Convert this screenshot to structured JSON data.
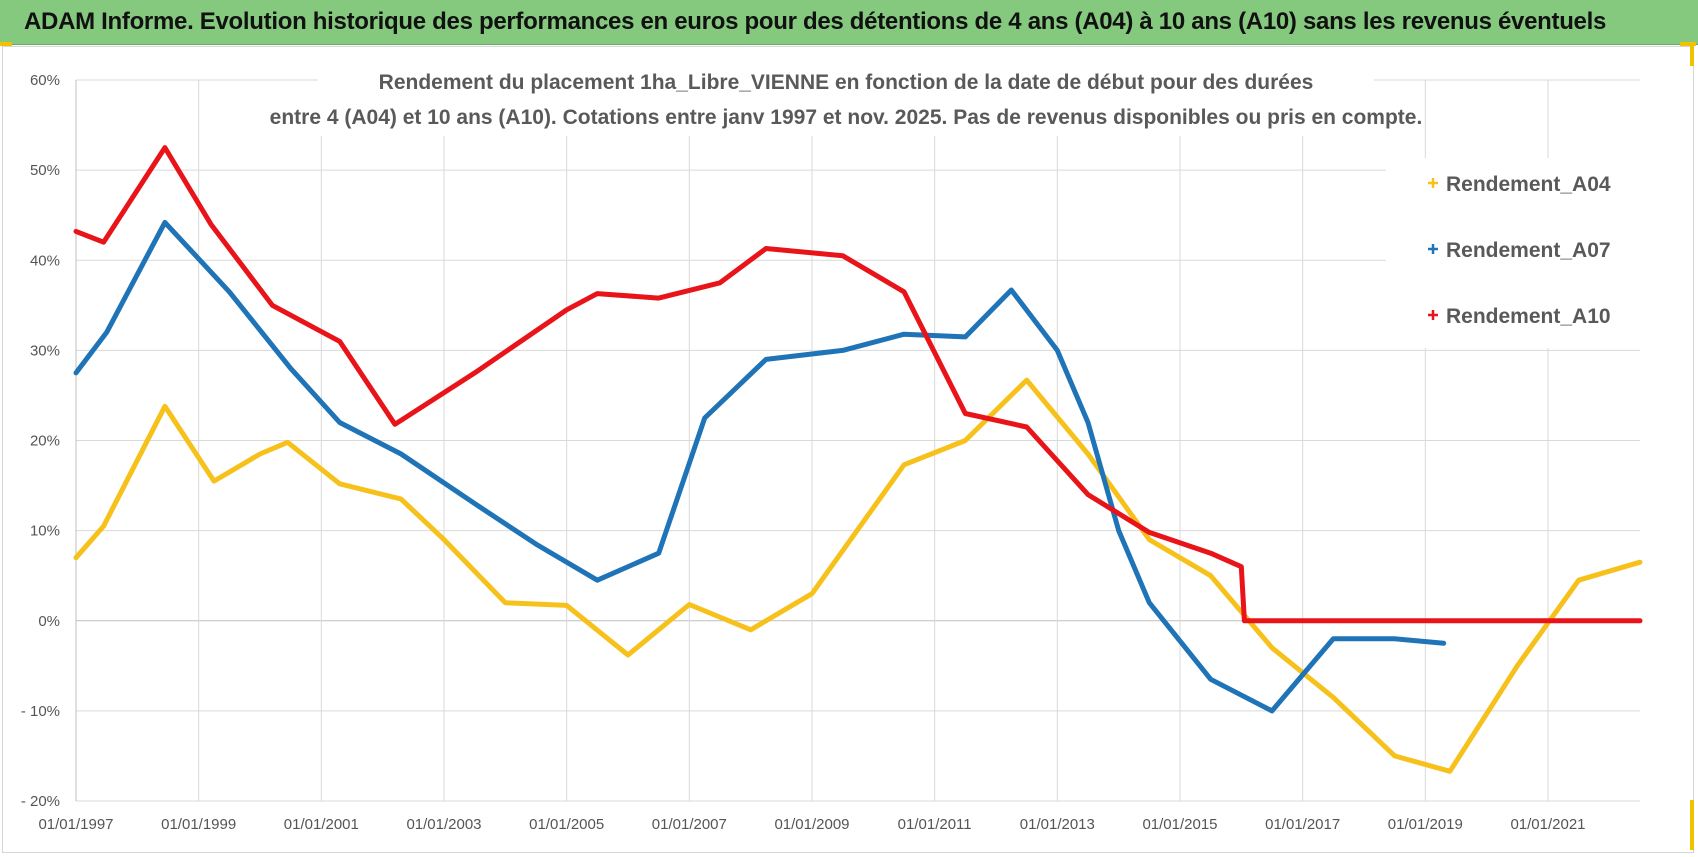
{
  "header": {
    "title": "ADAM Informe. Evolution historique des performances en euros pour des détentions de 4 ans (A04) à 10 ans (A10) sans les revenus éventuels"
  },
  "colors": {
    "header_bg": "#85c97f",
    "A04": "#f7c11c",
    "A07": "#1f73b7",
    "A10": "#e8141a",
    "grid": "#d9d9d9"
  },
  "chart_data": {
    "type": "line",
    "title_lines": [
      "Rendement du placement 1ha_Libre_VIENNE en fonction de la date de début pour des durées",
      "entre 4 (A04) et 10 ans (A10).  Cotations entre janv 1997 et nov. 2025. Pas de revenus disponibles ou pris en compte."
    ],
    "x_range": [
      1997.0,
      2022.5
    ],
    "ylim": [
      -20,
      60
    ],
    "y_ticks": [
      {
        "value": 60,
        "label": "60%"
      },
      {
        "value": 50,
        "label": "50%"
      },
      {
        "value": 40,
        "label": "40%"
      },
      {
        "value": 30,
        "label": "30%"
      },
      {
        "value": 20,
        "label": "20%"
      },
      {
        "value": 10,
        "label": "10%"
      },
      {
        "value": 0,
        "label": "0%"
      },
      {
        "value": -10,
        "label": "- 10%"
      },
      {
        "value": -20,
        "label": "- 20%"
      }
    ],
    "x_ticks": [
      {
        "value": 1997,
        "label": "01/01/1997"
      },
      {
        "value": 1999,
        "label": "01/01/1999"
      },
      {
        "value": 2001,
        "label": "01/01/2001"
      },
      {
        "value": 2003,
        "label": "01/01/2003"
      },
      {
        "value": 2005,
        "label": "01/01/2005"
      },
      {
        "value": 2007,
        "label": "01/01/2007"
      },
      {
        "value": 2009,
        "label": "01/01/2009"
      },
      {
        "value": 2011,
        "label": "01/01/2011"
      },
      {
        "value": 2013,
        "label": "01/01/2013"
      },
      {
        "value": 2015,
        "label": "01/01/2015"
      },
      {
        "value": 2017,
        "label": "01/01/2017"
      },
      {
        "value": 2019,
        "label": "01/01/2019"
      },
      {
        "value": 2021,
        "label": "01/01/2021"
      }
    ],
    "series": [
      {
        "name": "Rendement_A04",
        "color": "#f7c11c",
        "x": [
          1997.0,
          1997.45,
          1998.45,
          1999.25,
          2000.0,
          2000.45,
          2001.3,
          2002.3,
          2003.0,
          2004.0,
          2005.0,
          2006.0,
          2007.0,
          2008.0,
          2009.0,
          2010.5,
          2011.5,
          2012.5,
          2013.5,
          2014.5,
          2015.5,
          2016.5,
          2017.5,
          2018.5,
          2019.4,
          2020.5,
          2021.5,
          2022.5
        ],
        "values": [
          7,
          10.5,
          23.8,
          15.5,
          18.5,
          19.8,
          15.2,
          13.5,
          9.0,
          2.0,
          1.7,
          -3.8,
          1.8,
          -1.0,
          3.0,
          17.3,
          20.0,
          26.7,
          18.5,
          9.0,
          5.0,
          -3.0,
          -8.5,
          -15.0,
          -16.7,
          -5.0,
          4.5,
          6.5
        ]
      },
      {
        "name": "Rendement_A07",
        "color": "#1f73b7",
        "x": [
          1997.0,
          1997.5,
          1998.45,
          1999.5,
          2000.5,
          2001.3,
          2002.3,
          2003.5,
          2004.5,
          2005.5,
          2006.5,
          2007.25,
          2008.25,
          2009.5,
          2010.5,
          2011.5,
          2012.25,
          2013.0,
          2013.5,
          2014.0,
          2014.5,
          2015.5,
          2016.5,
          2017.5,
          2018.5,
          2019.3
        ],
        "values": [
          27.5,
          32.0,
          44.2,
          36.5,
          28.0,
          22.0,
          18.5,
          13.0,
          8.5,
          4.5,
          7.5,
          22.5,
          29.0,
          30.0,
          31.8,
          31.5,
          36.7,
          30.0,
          22.0,
          10.0,
          2.0,
          -6.5,
          -10.0,
          -2.0,
          -2.0,
          -2.5
        ]
      },
      {
        "name": "Rendement_A10",
        "color": "#e8141a",
        "x": [
          1997.0,
          1997.45,
          1998.45,
          1999.2,
          2000.2,
          2001.3,
          2002.2,
          2003.5,
          2005.0,
          2005.5,
          2006.5,
          2007.5,
          2008.25,
          2009.5,
          2010.5,
          2011.5,
          2012.5,
          2013.5,
          2014.5,
          2015.5,
          2016.0,
          2016.05,
          2022.5
        ],
        "values": [
          43.2,
          42.0,
          52.5,
          44.0,
          35.0,
          31.0,
          21.8,
          27.5,
          34.5,
          36.3,
          35.8,
          37.5,
          41.3,
          40.5,
          36.5,
          23.0,
          21.5,
          14.0,
          9.8,
          7.5,
          6.0,
          0.0,
          0.0
        ]
      }
    ]
  }
}
